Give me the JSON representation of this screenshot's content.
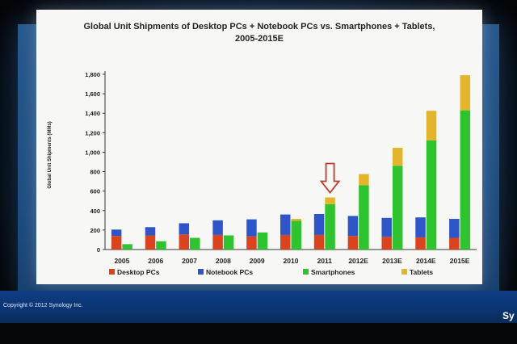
{
  "colors": {
    "desktop": "#d9441f",
    "notebook": "#2f56c8",
    "smartphones": "#2fc32f",
    "tablets": "#e2b52c",
    "arrow": "#c0392b"
  },
  "chart_data": {
    "type": "bar",
    "title": "Global Unit Shipments of Desktop PCs + Notebook PCs vs. Smartphones + Tablets, 2005-2015E",
    "title_lines": [
      "Global Unit Shipments of Desktop PCs + Notebook PCs vs. Smartphones + Tablets,",
      "2005-2015E"
    ],
    "xlabel": "",
    "ylabel": "Global Unit Shipments (MMs)",
    "ylim": [
      0,
      1800
    ],
    "yticks": [
      0,
      200,
      400,
      600,
      800,
      "1,000",
      "1,200",
      "1,400",
      "1,600",
      "1,800"
    ],
    "grid": false,
    "legend_position": "bottom",
    "categories": [
      "2005",
      "2006",
      "2007",
      "2008",
      "2009",
      "2010",
      "2011",
      "2012E",
      "2013E",
      "2014E",
      "2015E"
    ],
    "stacks": [
      {
        "name": "pc",
        "series": [
          "Desktop PCs",
          "Notebook PCs"
        ]
      },
      {
        "name": "mobile",
        "series": [
          "Smartphones",
          "Tablets"
        ]
      }
    ],
    "series": [
      {
        "name": "Desktop PCs",
        "stack": "pc",
        "color": "#d9441f",
        "values": [
          140,
          145,
          155,
          150,
          135,
          150,
          150,
          140,
          130,
          125,
          120
        ]
      },
      {
        "name": "Notebook PCs",
        "stack": "pc",
        "color": "#2f56c8",
        "values": [
          65,
          85,
          115,
          150,
          175,
          210,
          215,
          205,
          195,
          205,
          195
        ]
      },
      {
        "name": "Smartphones",
        "stack": "mobile",
        "color": "#2fc32f",
        "values": [
          55,
          85,
          120,
          145,
          175,
          295,
          465,
          660,
          860,
          1120,
          1430
        ]
      },
      {
        "name": "Tablets",
        "stack": "mobile",
        "color": "#e2b52c",
        "values": [
          0,
          0,
          0,
          0,
          0,
          20,
          70,
          115,
          185,
          305,
          360
        ]
      }
    ],
    "annotations": [
      {
        "type": "arrow",
        "category": "2011",
        "points": "down"
      }
    ]
  },
  "footer": {
    "copyright": "Copyright © 2012 Synology Inc.",
    "logo": "Sy"
  }
}
